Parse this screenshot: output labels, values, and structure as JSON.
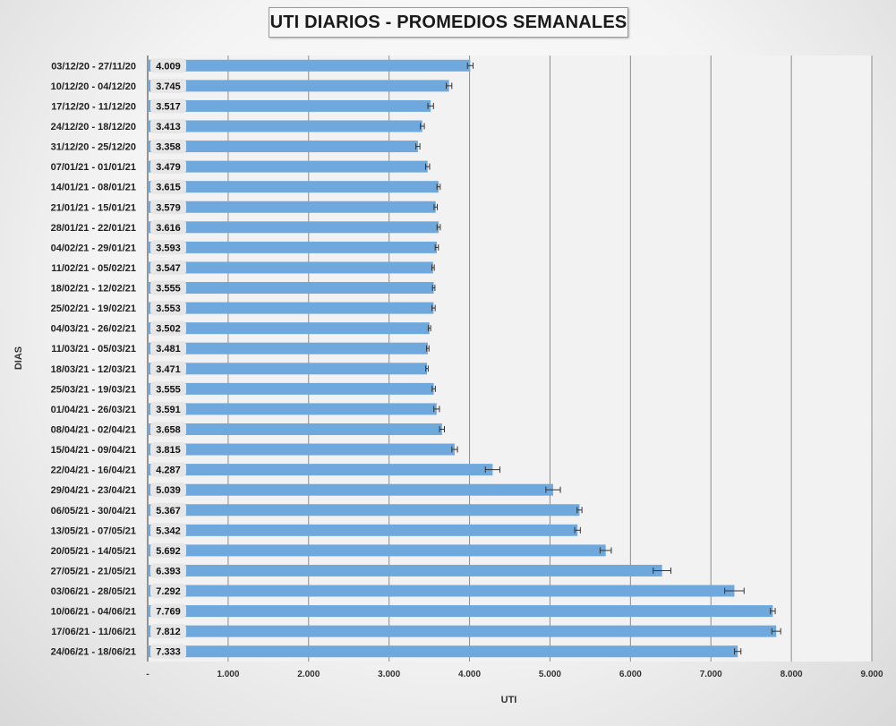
{
  "chart_data": {
    "type": "bar",
    "orientation": "horizontal",
    "title": "UTI DIARIOS - PROMEDIOS SEMANALES",
    "xlabel": "UTI",
    "ylabel": "DIAS",
    "xlim": [
      0,
      9000
    ],
    "x_ticks": [
      "-",
      "1.000",
      "2.000",
      "3.000",
      "4.000",
      "5.000",
      "6.000",
      "7.000",
      "8.000",
      "9.000"
    ],
    "grid": "vertical",
    "bar_color": "#6fa8dc",
    "error_bars": true,
    "categories": [
      "03/12/20 - 27/11/20",
      "10/12/20 - 04/12/20",
      "17/12/20 - 11/12/20",
      "24/12/20 - 18/12/20",
      "31/12/20 - 25/12/20",
      "07/01/21 - 01/01/21",
      "14/01/21 - 08/01/21",
      "21/01/21 - 15/01/21",
      "28/01/21 - 22/01/21",
      "04/02/21 - 29/01/21",
      "11/02/21 - 05/02/21",
      "18/02/21 - 12/02/21",
      "25/02/21 - 19/02/21",
      "04/03/21 - 26/02/21",
      "11/03/21 - 05/03/21",
      "18/03/21 - 12/03/21",
      "25/03/21 - 19/03/21",
      "01/04/21 - 26/03/21",
      "08/04/21 - 02/04/21",
      "15/04/21 - 09/04/21",
      "22/04/21 - 16/04/21",
      "29/04/21 - 23/04/21",
      "06/05/21 - 30/04/21",
      "13/05/21 - 07/05/21",
      "20/05/21 - 14/05/21",
      "27/05/21 - 21/05/21",
      "03/06/21 - 28/05/21",
      "10/06/21 - 04/06/21",
      "17/06/21 - 11/06/21",
      "24/06/21 - 18/06/21"
    ],
    "values": [
      4009,
      3745,
      3517,
      3413,
      3358,
      3479,
      3615,
      3579,
      3616,
      3593,
      3547,
      3555,
      3553,
      3502,
      3481,
      3471,
      3555,
      3591,
      3658,
      3815,
      4287,
      5039,
      5367,
      5342,
      5692,
      6393,
      7292,
      7769,
      7812,
      7333
    ],
    "value_labels": [
      "4.009",
      "3.745",
      "3.517",
      "3.413",
      "3.358",
      "3.479",
      "3.615",
      "3.579",
      "3.616",
      "3.593",
      "3.547",
      "3.555",
      "3.553",
      "3.502",
      "3.481",
      "3.471",
      "3.555",
      "3.591",
      "3.658",
      "3.815",
      "4.287",
      "5.039",
      "5.367",
      "5.342",
      "5.692",
      "6.393",
      "7.292",
      "7.769",
      "7.812",
      "7.333"
    ],
    "errors": [
      35,
      35,
      35,
      25,
      25,
      25,
      20,
      20,
      20,
      20,
      15,
      15,
      20,
      15,
      15,
      15,
      20,
      35,
      30,
      35,
      90,
      90,
      30,
      35,
      70,
      110,
      120,
      30,
      55,
      40
    ]
  }
}
